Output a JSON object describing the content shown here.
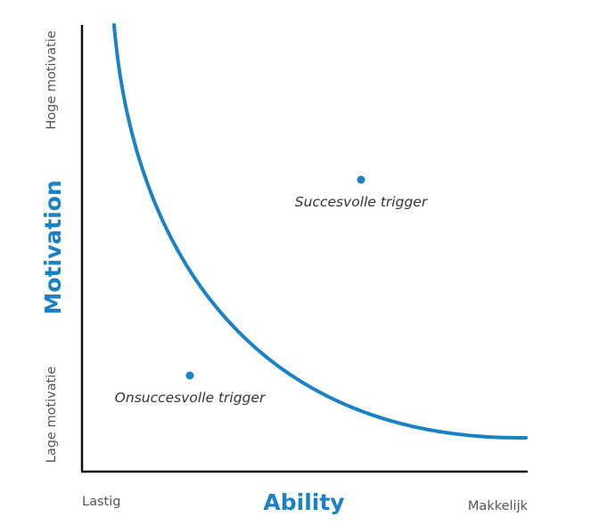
{
  "diagram": {
    "y_axis": {
      "title": "Motivation",
      "high_label": "Hoge motivatie",
      "low_label": "Lage motivatie"
    },
    "x_axis": {
      "title": "Ability",
      "low_label": "Lastig",
      "high_label": "Makkelijk"
    },
    "points": {
      "success_label": "Succesvolle trigger",
      "fail_label": "Onsuccesvolle trigger"
    },
    "colors": {
      "accent": "#1a82c4",
      "axis": "#111111",
      "secondary_text": "#555555"
    }
  }
}
